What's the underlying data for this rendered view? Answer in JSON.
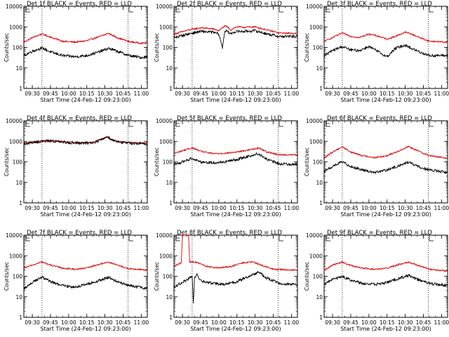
{
  "colors": {
    "events": "#000000",
    "lld": "#e00000"
  },
  "chart_data": [
    {
      "type": "line",
      "title": "Det 1f BLACK = Events, RED = LLD",
      "xlabel": "Start Time (24-Feb-12 09:23:00)",
      "ylabel": "Counts/sec",
      "yscale": "log",
      "ylim": [
        1,
        10000
      ],
      "xlim": [
        "09:23",
        "11:05"
      ],
      "x_ticks": [
        "09:30",
        "09:45",
        "10:00",
        "10:15",
        "10:30",
        "10:45",
        "11:00"
      ],
      "y_ticks": [
        "1",
        "10",
        "100",
        "1000",
        "10000"
      ],
      "markers": [
        "09:38",
        "10:49"
      ],
      "series": [
        {
          "name": "LLD",
          "x": [
            "09:23",
            "09:30",
            "09:38",
            "09:45",
            "09:55",
            "10:05",
            "10:15",
            "10:25",
            "10:33",
            "10:40",
            "10:50",
            "11:00",
            "11:05"
          ],
          "y": [
            180,
            300,
            450,
            320,
            200,
            180,
            210,
            330,
            480,
            300,
            190,
            160,
            165
          ]
        },
        {
          "name": "Events",
          "x": [
            "09:23",
            "09:30",
            "09:38",
            "09:45",
            "09:55",
            "10:05",
            "10:15",
            "10:25",
            "10:33",
            "10:40",
            "10:50",
            "11:00",
            "11:05"
          ],
          "y": [
            40,
            65,
            95,
            60,
            40,
            35,
            40,
            60,
            90,
            65,
            40,
            32,
            35
          ]
        }
      ]
    },
    {
      "type": "line",
      "title": "Det 2f BLACK = Events, RED = LLD",
      "xlabel": "Start Time (24-Feb-12 09:23:00)",
      "ylabel": "Counts/sec",
      "yscale": "log",
      "ylim": [
        1,
        10000
      ],
      "xlim": [
        "09:23",
        "11:05"
      ],
      "x_ticks": [
        "09:30",
        "09:45",
        "10:00",
        "10:15",
        "10:30",
        "10:45",
        "11:00"
      ],
      "y_ticks": [
        "1",
        "10",
        "100",
        "1000",
        "10000"
      ],
      "markers": [
        "09:38",
        "10:49"
      ],
      "series": [
        {
          "name": "LLD",
          "x": [
            "09:23",
            "09:35",
            "09:45",
            "09:55",
            "10:00",
            "10:03",
            "10:05",
            "10:07",
            "10:10",
            "10:12",
            "10:15",
            "10:20",
            "10:30",
            "10:40",
            "10:50",
            "11:05"
          ],
          "y": [
            450,
            700,
            900,
            800,
            650,
            900,
            1100,
            1000,
            700,
            850,
            1000,
            950,
            1000,
            700,
            500,
            480
          ]
        },
        {
          "name": "Events",
          "x": [
            "09:23",
            "09:35",
            "09:45",
            "09:55",
            "10:00",
            "10:03",
            "10:05",
            "10:07",
            "10:10",
            "10:12",
            "10:15",
            "10:20",
            "10:30",
            "10:40",
            "10:50",
            "11:05"
          ],
          "y": [
            300,
            450,
            600,
            550,
            450,
            100,
            650,
            600,
            450,
            550,
            600,
            600,
            650,
            450,
            340,
            340
          ]
        }
      ]
    },
    {
      "type": "line",
      "title": "Det 3f BLACK = Events, RED = LLD",
      "xlabel": "Start Time (24-Feb-12 09:23:00)",
      "ylabel": "Counts/sec",
      "yscale": "log",
      "ylim": [
        1,
        10000
      ],
      "xlim": [
        "09:23",
        "11:05"
      ],
      "x_ticks": [
        "09:30",
        "09:45",
        "10:00",
        "10:15",
        "10:30",
        "10:45",
        "11:00"
      ],
      "y_ticks": [
        "1",
        "10",
        "100",
        "1000",
        "10000"
      ],
      "markers": [
        "09:38",
        "10:49"
      ],
      "series": [
        {
          "name": "LLD",
          "x": [
            "09:23",
            "09:30",
            "09:38",
            "09:45",
            "09:52",
            "10:00",
            "10:08",
            "10:15",
            "10:22",
            "10:30",
            "10:35",
            "10:42",
            "10:50",
            "11:05"
          ],
          "y": [
            200,
            300,
            500,
            350,
            300,
            450,
            350,
            250,
            350,
            550,
            450,
            300,
            200,
            180
          ]
        },
        {
          "name": "Events",
          "x": [
            "09:23",
            "09:30",
            "09:38",
            "09:45",
            "09:52",
            "10:00",
            "10:08",
            "10:15",
            "10:22",
            "10:30",
            "10:35",
            "10:42",
            "10:50",
            "11:05"
          ],
          "y": [
            40,
            70,
            110,
            75,
            70,
            110,
            60,
            35,
            90,
            130,
            90,
            60,
            40,
            40
          ]
        }
      ]
    },
    {
      "type": "line",
      "title": "Det 4f BLACK = Events, RED = LLD",
      "xlabel": "Start Time (24-Feb-12 09:23:00)",
      "ylabel": "Counts/sec",
      "yscale": "log",
      "ylim": [
        1,
        10000
      ],
      "xlim": [
        "09:23",
        "11:05"
      ],
      "x_ticks": [
        "09:30",
        "09:45",
        "10:00",
        "10:15",
        "10:30",
        "10:45",
        "11:00"
      ],
      "y_ticks": [
        "1",
        "10",
        "100",
        "1000",
        "10000"
      ],
      "markers": [
        "09:38",
        "10:49"
      ],
      "series": [
        {
          "name": "LLD",
          "x": [
            "09:23",
            "09:35",
            "09:45",
            "09:55",
            "10:10",
            "10:20",
            "10:28",
            "10:32",
            "10:36",
            "10:45",
            "11:05"
          ],
          "y": [
            800,
            1000,
            1100,
            950,
            850,
            900,
            1300,
            1800,
            1200,
            900,
            800
          ]
        },
        {
          "name": "Events",
          "x": [
            "09:23",
            "09:35",
            "09:45",
            "09:55",
            "10:10",
            "10:20",
            "10:28",
            "10:32",
            "10:36",
            "10:45",
            "11:05"
          ],
          "y": [
            750,
            950,
            1050,
            900,
            800,
            850,
            1250,
            1700,
            1150,
            850,
            750
          ]
        }
      ]
    },
    {
      "type": "line",
      "title": "Det 5f BLACK = Events, RED = LLD",
      "xlabel": "Start Time (24-Feb-12 09:23:00)",
      "ylabel": "Counts/sec",
      "yscale": "log",
      "ylim": [
        1,
        10000
      ],
      "xlim": [
        "09:23",
        "11:05"
      ],
      "x_ticks": [
        "09:30",
        "09:45",
        "10:00",
        "10:15",
        "10:30",
        "10:45",
        "11:00"
      ],
      "y_ticks": [
        "1",
        "10",
        "100",
        "1000",
        "10000"
      ],
      "markers": [
        "09:38",
        "10:49"
      ],
      "series": [
        {
          "name": "LLD",
          "x": [
            "09:23",
            "09:30",
            "09:38",
            "09:45",
            "09:55",
            "10:05",
            "10:15",
            "10:25",
            "10:33",
            "10:40",
            "10:50",
            "11:05"
          ],
          "y": [
            250,
            350,
            480,
            330,
            250,
            260,
            300,
            380,
            480,
            300,
            220,
            220
          ]
        },
        {
          "name": "Events",
          "x": [
            "09:23",
            "09:30",
            "09:38",
            "09:45",
            "09:55",
            "10:05",
            "10:15",
            "10:25",
            "10:33",
            "10:40",
            "10:50",
            "11:05"
          ],
          "y": [
            70,
            100,
            150,
            100,
            90,
            100,
            130,
            190,
            250,
            130,
            80,
            75
          ]
        }
      ]
    },
    {
      "type": "line",
      "title": "Det 6f BLACK = Events, RED = LLD",
      "xlabel": "Start Time (24-Feb-12 09:23:00)",
      "ylabel": "Counts/sec",
      "yscale": "log",
      "ylim": [
        1,
        10000
      ],
      "xlim": [
        "09:23",
        "11:05"
      ],
      "x_ticks": [
        "09:30",
        "09:45",
        "10:00",
        "10:15",
        "10:30",
        "10:45",
        "11:00"
      ],
      "y_ticks": [
        "1",
        "10",
        "100",
        "1000",
        "10000"
      ],
      "markers": [
        "09:38",
        "10:49"
      ],
      "series": [
        {
          "name": "LLD",
          "x": [
            "09:23",
            "09:30",
            "09:38",
            "09:45",
            "09:55",
            "10:05",
            "10:15",
            "10:25",
            "10:33",
            "10:40",
            "10:50",
            "11:05"
          ],
          "y": [
            150,
            300,
            550,
            300,
            200,
            160,
            200,
            350,
            550,
            350,
            200,
            150
          ]
        },
        {
          "name": "Events",
          "x": [
            "09:23",
            "09:30",
            "09:38",
            "09:45",
            "09:55",
            "10:05",
            "10:15",
            "10:25",
            "10:33",
            "10:40",
            "10:50",
            "11:05"
          ],
          "y": [
            35,
            60,
            100,
            60,
            40,
            30,
            40,
            65,
            100,
            60,
            40,
            30
          ]
        }
      ]
    },
    {
      "type": "line",
      "title": "Det 7f BLACK = Events, RED = LLD",
      "xlabel": "Start Time (24-Feb-12 09:23:00)",
      "ylabel": "Counts/sec",
      "yscale": "log",
      "ylim": [
        1,
        10000
      ],
      "xlim": [
        "09:23",
        "11:05"
      ],
      "x_ticks": [
        "09:30",
        "09:45",
        "10:00",
        "10:15",
        "10:30",
        "10:45",
        "11:00"
      ],
      "y_ticks": [
        "1",
        "10",
        "100",
        "1000",
        "10000"
      ],
      "markers": [
        "09:38",
        "10:49"
      ],
      "series": [
        {
          "name": "LLD",
          "x": [
            "09:23",
            "09:30",
            "09:38",
            "09:45",
            "09:55",
            "10:05",
            "10:15",
            "10:25",
            "10:33",
            "10:40",
            "10:50",
            "11:05"
          ],
          "y": [
            250,
            350,
            500,
            350,
            250,
            220,
            250,
            380,
            500,
            350,
            230,
            200
          ]
        },
        {
          "name": "Events",
          "x": [
            "09:23",
            "09:30",
            "09:38",
            "09:45",
            "09:55",
            "10:05",
            "10:15",
            "10:25",
            "10:33",
            "10:40",
            "10:50",
            "11:05"
          ],
          "y": [
            25,
            50,
            90,
            55,
            35,
            30,
            40,
            60,
            90,
            55,
            35,
            25
          ]
        }
      ]
    },
    {
      "type": "line",
      "title": "Det 8f BLACK = Events, RED = LLD",
      "xlabel": "Start Time (24-Feb-12 09:23:00)",
      "ylabel": "Counts/sec",
      "yscale": "log",
      "ylim": [
        1,
        10000
      ],
      "xlim": [
        "09:23",
        "11:05"
      ],
      "x_ticks": [
        "09:30",
        "09:45",
        "10:00",
        "10:15",
        "10:30",
        "10:45",
        "11:00"
      ],
      "y_ticks": [
        "1",
        "10",
        "100",
        "1000",
        "10000"
      ],
      "markers": [
        "09:38",
        "10:49"
      ],
      "series": [
        {
          "name": "LLD",
          "x": [
            "09:23",
            "09:29",
            "09:30",
            "09:35",
            "09:36",
            "09:42",
            "09:50",
            "10:00",
            "10:10",
            "10:20",
            "10:28",
            "10:35",
            "10:45",
            "11:05"
          ],
          "y": [
            300,
            450,
            10000,
            10000,
            500,
            480,
            300,
            250,
            300,
            450,
            500,
            350,
            220,
            200
          ]
        },
        {
          "name": "Events",
          "x": [
            "09:23",
            "09:30",
            "09:38",
            "09:39",
            "09:40",
            "09:42",
            "09:45",
            "09:55",
            "10:05",
            "10:15",
            "10:25",
            "10:33",
            "10:40",
            "10:50",
            "11:05"
          ],
          "y": [
            30,
            50,
            100,
            5,
            80,
            120,
            60,
            45,
            40,
            55,
            100,
            160,
            80,
            45,
            40
          ]
        }
      ]
    },
    {
      "type": "line",
      "title": "Det 9f BLACK = Events, RED = LLD",
      "xlabel": "Start Time (24-Feb-12 09:23:00)",
      "ylabel": "Counts/sec",
      "yscale": "log",
      "ylim": [
        1,
        10000
      ],
      "xlim": [
        "09:23",
        "11:05"
      ],
      "x_ticks": [
        "09:30",
        "09:45",
        "10:00",
        "10:15",
        "10:30",
        "10:45",
        "11:00"
      ],
      "y_ticks": [
        "1",
        "10",
        "100",
        "1000",
        "10000"
      ],
      "markers": [
        "09:38",
        "10:49"
      ],
      "series": [
        {
          "name": "LLD",
          "x": [
            "09:23",
            "09:30",
            "09:38",
            "09:45",
            "09:55",
            "10:05",
            "10:15",
            "10:25",
            "10:33",
            "10:40",
            "10:50",
            "11:05"
          ],
          "y": [
            200,
            350,
            500,
            330,
            250,
            220,
            250,
            380,
            500,
            350,
            220,
            180
          ]
        },
        {
          "name": "Events",
          "x": [
            "09:23",
            "09:30",
            "09:38",
            "09:45",
            "09:55",
            "10:05",
            "10:15",
            "10:25",
            "10:33",
            "10:40",
            "10:50",
            "11:05"
          ],
          "y": [
            40,
            70,
            100,
            65,
            45,
            40,
            50,
            80,
            110,
            70,
            45,
            35
          ]
        }
      ]
    }
  ]
}
